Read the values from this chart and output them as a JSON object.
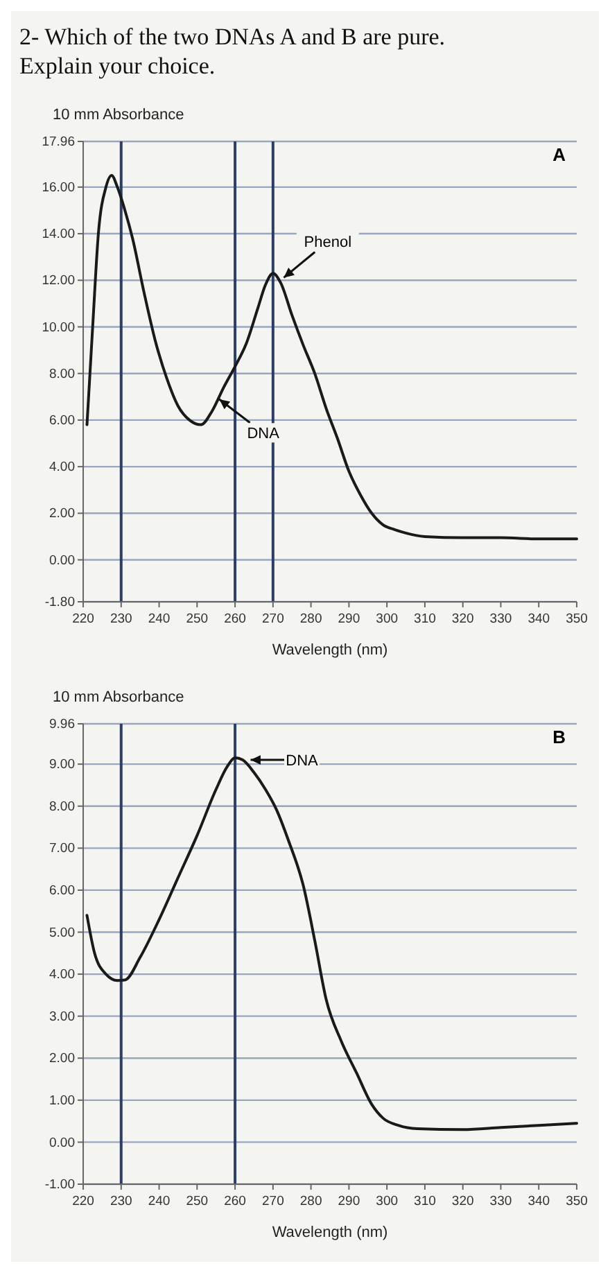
{
  "chart_data": [
    {
      "type": "line",
      "title": "2- Which of the two DNAs A and B are pure. Explain your choice.",
      "xlabel": "Wavelength (nm)",
      "ylabel": "10 mm Absorbance",
      "xlim": [
        220,
        350
      ],
      "xticks": [
        220,
        230,
        240,
        250,
        260,
        270,
        280,
        290,
        300,
        310,
        320,
        330,
        340,
        350
      ],
      "ylim": [
        -1.8,
        17.96
      ],
      "yticks": [
        {
          "value": 17.96,
          "label": "17.96"
        },
        {
          "value": 16,
          "label": "16.00"
        },
        {
          "value": 14,
          "label": "14.00"
        },
        {
          "value": 12,
          "label": "12.00"
        },
        {
          "value": 10,
          "label": "10.00"
        },
        {
          "value": 8,
          "label": "8.00"
        },
        {
          "value": 6,
          "label": "6.00"
        },
        {
          "value": 4,
          "label": "4.00"
        },
        {
          "value": 2,
          "label": "2.00"
        },
        {
          "value": 0,
          "label": "0.00"
        },
        {
          "value": -1.8,
          "label": "-1.80"
        }
      ],
      "grid": "y",
      "line_style": "solid",
      "series": [
        {
          "color": "#1a1a1a",
          "x": [
            221,
            222.5,
            224,
            226,
            227.5,
            229,
            231,
            233,
            236,
            239,
            242,
            245,
            248,
            251,
            254,
            257,
            260,
            263,
            266,
            268,
            270,
            272,
            275,
            278,
            281,
            284,
            287,
            290,
            293,
            296,
            299,
            302,
            305,
            310,
            320,
            330,
            340,
            350
          ],
          "values": [
            5.8,
            10,
            14,
            16,
            16.5,
            16,
            15,
            13.8,
            11.5,
            9.4,
            7.8,
            6.6,
            6,
            5.8,
            6.4,
            7.4,
            8.3,
            9.3,
            10.8,
            11.8,
            12.3,
            11.9,
            10.5,
            9.2,
            8,
            6.5,
            5.2,
            3.8,
            2.8,
            2,
            1.5,
            1.3,
            1.15,
            1,
            0.95,
            0.95,
            0.9,
            0.9
          ]
        }
      ],
      "ref_lines": [
        {
          "axis": "x",
          "value": 230,
          "color": "#2b3f66"
        },
        {
          "axis": "x",
          "value": 260,
          "color": "#2b3f66"
        },
        {
          "axis": "x",
          "value": 270,
          "color": "#2b3f66"
        }
      ],
      "annotations": [
        {
          "text": "DNA",
          "x": 255,
          "y": 7
        },
        {
          "text": "Phenol",
          "x": 272,
          "y": 12
        },
        "A"
      ]
    },
    {
      "type": "line",
      "xlabel": "Wavelength (nm)",
      "ylabel": "10 mm Absorbance",
      "xlim": [
        220,
        350
      ],
      "xticks": [
        220,
        230,
        240,
        250,
        260,
        270,
        280,
        290,
        300,
        310,
        320,
        330,
        340,
        350
      ],
      "ylim": [
        -1,
        9.96
      ],
      "yticks": [
        {
          "value": 9.96,
          "label": "9.96"
        },
        {
          "value": 9,
          "label": "9.00"
        },
        {
          "value": 8,
          "label": "8.00"
        },
        {
          "value": 7,
          "label": "7.00"
        },
        {
          "value": 6,
          "label": "6.00"
        },
        {
          "value": 5,
          "label": "5.00"
        },
        {
          "value": 4,
          "label": "4.00"
        },
        {
          "value": 3,
          "label": "3.00"
        },
        {
          "value": 2,
          "label": "2.00"
        },
        {
          "value": 1,
          "label": "1.00"
        },
        {
          "value": 0,
          "label": "0.00"
        },
        {
          "value": -1,
          "label": "-1.00"
        }
      ],
      "grid": "y",
      "line_style": "solid",
      "series": [
        {
          "color": "#1a1a1a",
          "x": [
            221,
            223,
            226,
            229,
            231,
            235,
            240,
            245,
            250,
            255,
            258,
            260,
            262,
            265,
            268,
            271,
            274,
            278,
            281,
            284,
            288,
            292,
            296,
            299,
            303,
            308,
            320,
            330,
            340,
            350
          ],
          "values": [
            5.4,
            4.5,
            4,
            3.85,
            3.86,
            4.4,
            5.3,
            6.3,
            7.3,
            8.4,
            8.95,
            9.15,
            9.1,
            8.8,
            8.4,
            7.9,
            7.2,
            6.1,
            4.8,
            3.4,
            2.4,
            1.65,
            0.9,
            0.57,
            0.4,
            0.32,
            0.3,
            0.35,
            0.4,
            0.45
          ]
        }
      ],
      "ref_lines": [
        {
          "axis": "x",
          "value": 230,
          "color": "#2b3f66"
        },
        {
          "axis": "x",
          "value": 260,
          "color": "#2b3f66"
        }
      ],
      "annotations": [
        {
          "text": "DNA",
          "x": 263,
          "y": 9.1
        },
        "B"
      ]
    }
  ]
}
